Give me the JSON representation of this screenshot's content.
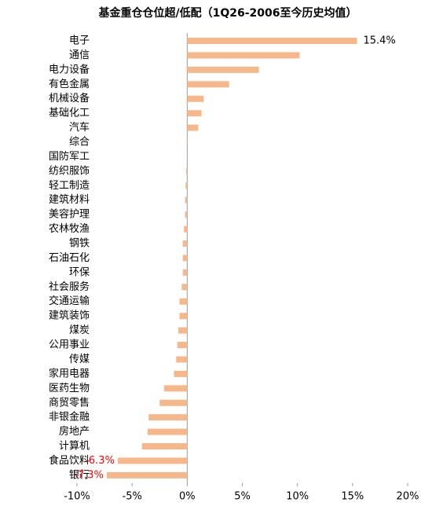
{
  "chart_data": {
    "type": "barh",
    "title": "基金重仓仓位超/低配（1Q26-2006至今历史均值）",
    "categories": [
      "电子",
      "通信",
      "电力设备",
      "有色金属",
      "机械设备",
      "基础化工",
      "汽车",
      "综合",
      "国防军工",
      "纺织服饰",
      "轻工制造",
      "建筑材料",
      "美容护理",
      "农林牧渔",
      "钢铁",
      "石油石化",
      "环保",
      "社会服务",
      "交通运输",
      "建筑装饰",
      "煤炭",
      "公用事业",
      "传媒",
      "家用电器",
      "医药生物",
      "商贸零售",
      "非银金融",
      "房地产",
      "计算机",
      "食品饮料",
      "银行"
    ],
    "values": [
      15.4,
      10.2,
      6.5,
      3.8,
      1.5,
      1.3,
      1.0,
      0.05,
      0.02,
      -0.1,
      -0.15,
      -0.2,
      -0.2,
      -0.3,
      -0.4,
      -0.4,
      -0.4,
      -0.5,
      -0.7,
      -0.7,
      -0.8,
      -0.9,
      -1.0,
      -1.2,
      -2.1,
      -2.5,
      -3.5,
      -3.6,
      -4.1,
      -6.3,
      -7.3
    ],
    "value_labels": [
      "15.4%",
      null,
      null,
      null,
      null,
      null,
      null,
      null,
      null,
      null,
      null,
      null,
      null,
      null,
      null,
      null,
      null,
      null,
      null,
      null,
      null,
      null,
      null,
      null,
      null,
      null,
      null,
      null,
      null,
      "-6.3%",
      "-7.3%"
    ],
    "color": "#f6b78a",
    "negative_label_color": "#ff0000",
    "xlim": [
      -10,
      20
    ],
    "xticks": [
      {
        "value": -10,
        "label": "-10%"
      },
      {
        "value": -5,
        "label": "-5%"
      },
      {
        "value": 0,
        "label": "0%"
      },
      {
        "value": 5,
        "label": "5%"
      },
      {
        "value": 10,
        "label": "10%"
      },
      {
        "value": 15,
        "label": "15%"
      },
      {
        "value": 20,
        "label": "20%"
      }
    ]
  }
}
